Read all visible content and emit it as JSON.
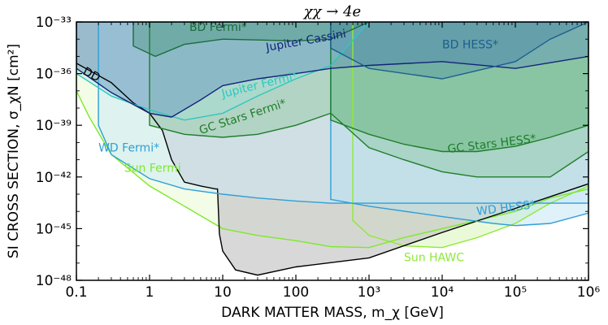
{
  "chart_data": {
    "type": "area",
    "title": "χχ → 4e",
    "xlabel": "DARK MATTER MASS, m_χ [GeV]",
    "ylabel": "SI CROSS SECTION, σ_χN [cm²]",
    "x_scale": "log",
    "y_scale": "log",
    "xlim": [
      0.1,
      1000000
    ],
    "ylim": [
      1e-48,
      1e-33
    ],
    "x_ticks": [
      {
        "value": 0.1,
        "label": "0.1"
      },
      {
        "value": 1,
        "label": "1"
      },
      {
        "value": 10,
        "label": "10"
      },
      {
        "value": 100,
        "label": "100"
      },
      {
        "value": 1000,
        "label": "10³"
      },
      {
        "value": 10000,
        "label": "10⁴"
      },
      {
        "value": 100000,
        "label": "10⁵"
      },
      {
        "value": 1000000,
        "label": "10⁶"
      }
    ],
    "y_ticks": [
      {
        "value": 1e-33,
        "label": "10⁻³³"
      },
      {
        "value": 1e-36,
        "label": "10⁻³⁶"
      },
      {
        "value": 1e-39,
        "label": "10⁻³⁹"
      },
      {
        "value": 1e-42,
        "label": "10⁻⁴²"
      },
      {
        "value": 1e-45,
        "label": "10⁻⁴⁵"
      },
      {
        "value": 1e-48,
        "label": "10⁻⁴⁸"
      }
    ],
    "grid": false,
    "series": [
      {
        "name": "Sun HAWC",
        "color": "#8fe83a",
        "fill": "#d8f6b8",
        "fill_opacity": 0.55,
        "label_at": [
          3000,
          1.3e-47
        ],
        "label_rotation": 0,
        "points": [
          [
            600,
            1e-33
          ],
          [
            600,
            3e-45
          ],
          [
            1000,
            4e-46
          ],
          [
            3000,
            1e-46
          ],
          [
            10000,
            8e-47
          ],
          [
            30000,
            3e-46
          ],
          [
            100000,
            2e-45
          ],
          [
            300000,
            3e-44
          ],
          [
            1000000,
            3e-43
          ],
          [
            1000000,
            1e-33
          ]
        ]
      },
      {
        "name": "Sun Fermi",
        "color": "#7ee82a",
        "fill": "#e6fad0",
        "fill_opacity": 0.5,
        "label_at": [
          0.45,
          2e-42
        ],
        "label_rotation": 0,
        "points": [
          [
            0.1,
            1e-33
          ],
          [
            0.1,
            1e-37
          ],
          [
            0.15,
            3e-39
          ],
          [
            0.3,
            2e-41
          ],
          [
            1,
            3e-43
          ],
          [
            3,
            2e-44
          ],
          [
            10,
            1e-45
          ],
          [
            30,
            4e-46
          ],
          [
            100,
            2e-46
          ],
          [
            300,
            9e-47
          ],
          [
            1000,
            8e-47
          ],
          [
            3000,
            3e-46
          ],
          [
            10000,
            1e-45
          ],
          [
            30000,
            3e-45
          ],
          [
            100000,
            1e-44
          ],
          [
            300000,
            6e-44
          ],
          [
            1000000,
            2e-43
          ],
          [
            1000000,
            1e-33
          ]
        ]
      },
      {
        "name": "DD",
        "color": "#000000",
        "fill": "#c8c8c8",
        "fill_opacity": 0.7,
        "label_at": [
          0.12,
          1e-36
        ],
        "label_rotation": 28,
        "points": [
          [
            0.1,
            4e-36
          ],
          [
            0.3,
            3e-37
          ],
          [
            0.6,
            2e-38
          ],
          [
            1,
            5e-39
          ],
          [
            1.5,
            5e-40
          ],
          [
            2,
            1e-41
          ],
          [
            3,
            5e-43
          ],
          [
            5,
            3e-43
          ],
          [
            8,
            2e-43
          ],
          [
            8.5,
            2e-43
          ],
          [
            9,
            5e-46
          ],
          [
            10,
            5e-47
          ],
          [
            15,
            4e-48
          ],
          [
            30,
            2e-48
          ],
          [
            100,
            6e-48
          ],
          [
            1000,
            2e-47
          ],
          [
            10000,
            6e-46
          ],
          [
            100000,
            1.5e-44
          ],
          [
            1000000,
            4e-43
          ],
          [
            1000000,
            1e-33
          ],
          [
            0.1,
            1e-33
          ]
        ]
      },
      {
        "name": "WD Fermi*",
        "color": "#2e9fd6",
        "fill": "#c9e8f7",
        "fill_opacity": 0.5,
        "label_at": [
          0.2,
          3e-41
        ],
        "label_rotation": 0,
        "points": [
          [
            0.2,
            1e-33
          ],
          [
            0.2,
            1e-39
          ],
          [
            0.3,
            2e-41
          ],
          [
            1,
            8e-43
          ],
          [
            3,
            2e-43
          ],
          [
            10,
            1e-43
          ],
          [
            30,
            6e-44
          ],
          [
            100,
            4e-44
          ],
          [
            300,
            3e-44
          ],
          [
            1000,
            3e-44
          ],
          [
            1000000,
            3e-44
          ],
          [
            1000000,
            1e-33
          ]
        ]
      },
      {
        "name": "WD HESS*",
        "color": "#2e9fd6",
        "fill": "#b7dff2",
        "fill_opacity": 0.45,
        "label_at": [
          30000,
          6e-45
        ],
        "label_rotation": -7,
        "points": [
          [
            300,
            1e-33
          ],
          [
            300,
            5e-44
          ],
          [
            1000,
            2e-44
          ],
          [
            10000,
            5e-45
          ],
          [
            50000,
            2e-45
          ],
          [
            100000,
            1.5e-45
          ],
          [
            300000,
            2e-45
          ],
          [
            1000000,
            8e-45
          ],
          [
            1000000,
            1e-33
          ]
        ]
      },
      {
        "name": "GC Stars Fermi*",
        "color": "#1e7d2a",
        "fill": "#7bbf8a",
        "fill_opacity": 0.35,
        "label_at": [
          5,
          3e-40
        ],
        "label_rotation": -18,
        "points": [
          [
            1,
            1e-39
          ],
          [
            3,
            3e-40
          ],
          [
            10,
            2e-40
          ],
          [
            30,
            3e-40
          ],
          [
            100,
            1e-39
          ],
          [
            300,
            5e-39
          ],
          [
            1000,
            5e-41
          ],
          [
            3000,
            1e-41
          ],
          [
            10000,
            2e-42
          ],
          [
            30000,
            1e-42
          ],
          [
            100000,
            1e-42
          ],
          [
            300000,
            1e-42
          ],
          [
            1000000,
            3e-41
          ],
          [
            1000000,
            1e-33
          ],
          [
            1,
            1e-33
          ]
        ]
      },
      {
        "name": "GC Stars HESS*",
        "color": "#1e7d2a",
        "fill": "#4ca860",
        "fill_opacity": 0.35,
        "label_at": [
          12000,
          2.5e-41
        ],
        "label_rotation": -7,
        "points": [
          [
            300,
            1e-33
          ],
          [
            300,
            2e-39
          ],
          [
            1000,
            3e-40
          ],
          [
            3000,
            8e-41
          ],
          [
            10000,
            3e-41
          ],
          [
            30000,
            3e-41
          ],
          [
            100000,
            6e-41
          ],
          [
            300000,
            2e-40
          ],
          [
            1000000,
            1e-39
          ],
          [
            1000000,
            1e-33
          ]
        ]
      },
      {
        "name": "Jupiter Fermi*",
        "color": "#2ec6c0",
        "fill": "#9fe2de",
        "fill_opacity": 0.35,
        "label_at": [
          10,
          4e-38
        ],
        "label_rotation": -14,
        "points": [
          [
            0.1,
            1e-33
          ],
          [
            0.1,
            1e-36
          ],
          [
            0.3,
            5e-38
          ],
          [
            1,
            8e-39
          ],
          [
            3,
            2e-39
          ],
          [
            10,
            5e-39
          ],
          [
            30,
            5e-38
          ],
          [
            100,
            5e-37
          ],
          [
            300,
            3e-36
          ],
          [
            1000,
            1e-33
          ]
        ]
      },
      {
        "name": "Jupiter Cassini",
        "color": "#13237a",
        "fill": "#5d8bbd",
        "fill_opacity": 0.4,
        "label_at": [
          40,
          2e-35
        ],
        "label_rotation": -10,
        "points": [
          [
            0.1,
            1e-33
          ],
          [
            0.1,
            2e-36
          ],
          [
            0.3,
            8e-38
          ],
          [
            1,
            5e-39
          ],
          [
            2,
            3e-39
          ],
          [
            5,
            3e-38
          ],
          [
            10,
            2e-37
          ],
          [
            30,
            5e-37
          ],
          [
            100,
            1e-36
          ],
          [
            300,
            2e-36
          ],
          [
            1000,
            3e-36
          ],
          [
            10000,
            5e-36
          ],
          [
            100000,
            2e-36
          ],
          [
            1000000,
            1e-35
          ],
          [
            1000000,
            1e-33
          ]
        ]
      },
      {
        "name": "BD Fermi*",
        "color": "#1c6b3b",
        "fill": "#3e8f6d",
        "fill_opacity": 0.35,
        "label_at": [
          3.5,
          3e-34
        ],
        "label_rotation": 0,
        "points": [
          [
            0.6,
            1e-33
          ],
          [
            0.6,
            4e-35
          ],
          [
            1.2,
            1e-35
          ],
          [
            3,
            5e-35
          ],
          [
            10,
            1e-34
          ],
          [
            100,
            8e-35
          ],
          [
            300,
            1e-34
          ],
          [
            1000,
            1e-33
          ]
        ]
      },
      {
        "name": "BD HESS*",
        "color": "#1c5f8f",
        "fill": "#3a7ea1",
        "fill_opacity": 0.3,
        "label_at": [
          10000,
          3e-35
        ],
        "label_rotation": 0,
        "points": [
          [
            300,
            1e-33
          ],
          [
            300,
            3e-35
          ],
          [
            1000,
            2e-36
          ],
          [
            10000,
            5e-37
          ],
          [
            100000,
            5e-36
          ],
          [
            300000,
            1e-34
          ],
          [
            1000000,
            1e-33
          ]
        ]
      }
    ]
  }
}
